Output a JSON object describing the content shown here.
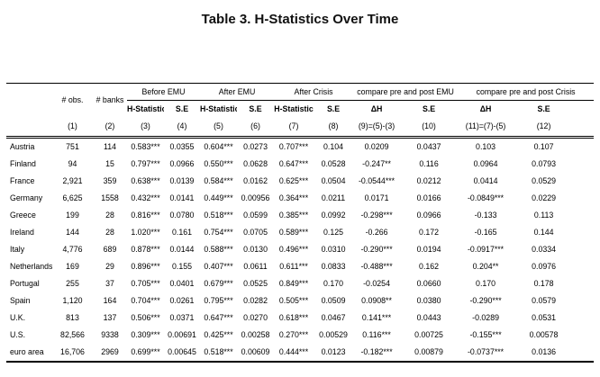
{
  "title": "Table 3. H-Statistics Over Time",
  "table": {
    "header": {
      "obs": "# obs.",
      "banks": "# banks",
      "groups": [
        {
          "label": "Before EMU",
          "sub": [
            "H-Statistic",
            "S.E"
          ]
        },
        {
          "label": "After EMU",
          "sub": [
            "H-Statistic",
            "S.E"
          ]
        },
        {
          "label": "After Crisis",
          "sub": [
            "H-Statistic",
            "S.E"
          ]
        },
        {
          "label": "compare pre and post EMU",
          "sub": [
            "ΔH",
            "S.E"
          ]
        },
        {
          "label": "compare pre and post Crisis",
          "sub": [
            "ΔH",
            "S.E"
          ]
        }
      ],
      "nums": [
        "(1)",
        "(2)",
        "(3)",
        "(4)",
        "(5)",
        "(6)",
        "(7)",
        "(8)",
        "(9)=(5)-(3)",
        "(10)",
        "(11)=(7)-(5)",
        "(12)"
      ]
    },
    "rows": [
      {
        "label": "Austria",
        "values": [
          "751",
          "114",
          "0.583***",
          "0.0355",
          "0.604***",
          "0.0273",
          "0.707***",
          "0.104",
          "0.0209",
          "0.0437",
          "0.103",
          "0.107"
        ]
      },
      {
        "label": "Finland",
        "values": [
          "94",
          "15",
          "0.797***",
          "0.0966",
          "0.550***",
          "0.0628",
          "0.647***",
          "0.0528",
          "-0.247**",
          "0.116",
          "0.0964",
          "0.0793"
        ]
      },
      {
        "label": "France",
        "values": [
          "2,921",
          "359",
          "0.638***",
          "0.0139",
          "0.584***",
          "0.0162",
          "0.625***",
          "0.0504",
          "-0.0544***",
          "0.0212",
          "0.0414",
          "0.0529"
        ]
      },
      {
        "label": "Germany",
        "values": [
          "6,625",
          "1558",
          "0.432***",
          "0.0141",
          "0.449***",
          "0.00956",
          "0.364***",
          "0.0211",
          "0.0171",
          "0.0166",
          "-0.0849***",
          "0.0229"
        ]
      },
      {
        "label": "Greece",
        "values": [
          "199",
          "28",
          "0.816***",
          "0.0780",
          "0.518***",
          "0.0599",
          "0.385***",
          "0.0992",
          "-0.298***",
          "0.0966",
          "-0.133",
          "0.113"
        ]
      },
      {
        "label": "Ireland",
        "values": [
          "144",
          "28",
          "1.020***",
          "0.161",
          "0.754***",
          "0.0705",
          "0.589***",
          "0.125",
          "-0.266",
          "0.172",
          "-0.165",
          "0.144"
        ]
      },
      {
        "label": "Italy",
        "values": [
          "4,776",
          "689",
          "0.878***",
          "0.0144",
          "0.588***",
          "0.0130",
          "0.496***",
          "0.0310",
          "-0.290***",
          "0.0194",
          "-0.0917***",
          "0.0334"
        ]
      },
      {
        "label": "Netherlands",
        "values": [
          "169",
          "29",
          "0.896***",
          "0.155",
          "0.407***",
          "0.0611",
          "0.611***",
          "0.0833",
          "-0.488***",
          "0.162",
          "0.204**",
          "0.0976"
        ]
      },
      {
        "label": "Portugal",
        "values": [
          "255",
          "37",
          "0.705***",
          "0.0401",
          "0.679***",
          "0.0525",
          "0.849***",
          "0.170",
          "-0.0254",
          "0.0660",
          "0.170",
          "0.178"
        ]
      },
      {
        "label": "Spain",
        "values": [
          "1,120",
          "164",
          "0.704***",
          "0.0261",
          "0.795***",
          "0.0282",
          "0.505***",
          "0.0509",
          "0.0908**",
          "0.0380",
          "-0.290***",
          "0.0579"
        ]
      },
      {
        "label": "U.K.",
        "values": [
          "813",
          "137",
          "0.506***",
          "0.0371",
          "0.647***",
          "0.0270",
          "0.618***",
          "0.0467",
          "0.141***",
          "0.0443",
          "-0.0289",
          "0.0531"
        ]
      },
      {
        "label": "U.S.",
        "values": [
          "82,566",
          "9338",
          "0.309***",
          "0.00691",
          "0.425***",
          "0.00258",
          "0.270***",
          "0.00529",
          "0.116***",
          "0.00725",
          "-0.155***",
          "0.00578"
        ]
      },
      {
        "label": "euro area",
        "values": [
          "16,706",
          "2969",
          "0.699***",
          "0.00645",
          "0.518***",
          "0.00609",
          "0.444***",
          "0.0123",
          "-0.182***",
          "0.00879",
          "-0.0737***",
          "0.0136"
        ]
      }
    ]
  }
}
